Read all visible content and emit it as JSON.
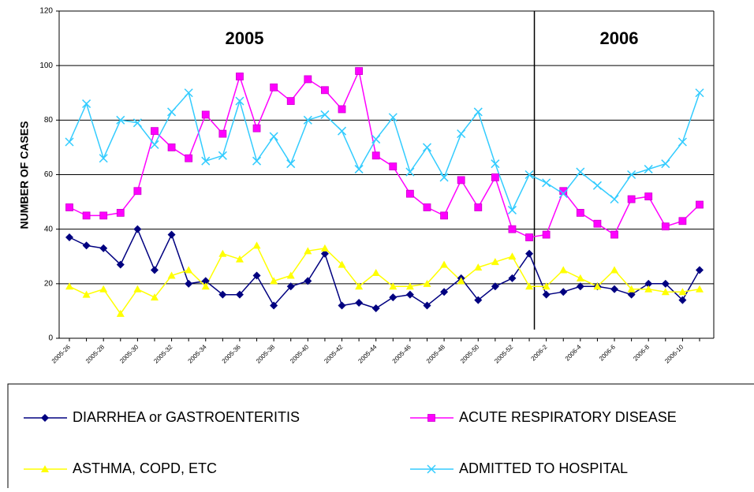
{
  "chart_data": {
    "type": "line",
    "y_label": "NUMBER OF CASES",
    "annotations": [
      "2005",
      "2006"
    ],
    "categories": [
      "2005-26",
      null,
      "2005-28",
      null,
      "2005-30",
      null,
      "2005-32",
      null,
      "2005-34",
      null,
      "2005-36",
      null,
      "2005-38",
      null,
      "2005-40",
      null,
      "2005-42",
      null,
      "2005-44",
      null,
      "2005-46",
      null,
      "2005-48",
      null,
      "2005-50",
      null,
      "2005-52",
      null,
      "2006-2",
      null,
      "2006-4",
      null,
      "2006-6",
      null,
      "2006-8",
      null,
      "2006-10",
      null
    ],
    "series": [
      {
        "name": "DIARRHEA or GASTROENTERITIS",
        "color": "#000080",
        "marker": "diamond",
        "values": [
          37,
          34,
          33,
          27,
          40,
          25,
          38,
          20,
          21,
          16,
          16,
          23,
          12,
          19,
          21,
          31,
          12,
          13,
          11,
          15,
          16,
          12,
          17,
          22,
          14,
          19,
          22,
          31,
          16,
          17,
          19,
          19,
          18,
          16,
          20,
          20,
          14,
          25
        ]
      },
      {
        "name": "ACUTE RESPIRATORY DISEASE",
        "color": "#ff00ff",
        "marker": "square",
        "values": [
          48,
          45,
          45,
          46,
          54,
          76,
          70,
          66,
          82,
          75,
          96,
          77,
          92,
          87,
          95,
          91,
          84,
          98,
          67,
          63,
          53,
          48,
          45,
          58,
          48,
          59,
          40,
          37,
          38,
          54,
          46,
          42,
          38,
          51,
          52,
          41,
          43,
          49
        ]
      },
      {
        "name": "ASTHMA, COPD, ETC",
        "color": "#ffff00",
        "marker": "triangle",
        "values": [
          19,
          16,
          18,
          9,
          18,
          15,
          23,
          25,
          19,
          31,
          29,
          34,
          21,
          23,
          32,
          33,
          27,
          19,
          24,
          19,
          19,
          20,
          27,
          21,
          26,
          28,
          30,
          19,
          19,
          25,
          22,
          19,
          25,
          18,
          18,
          17,
          17,
          18
        ]
      },
      {
        "name": "ADMITTED TO HOSPITAL",
        "color": "#33ccff",
        "marker": "x",
        "values": [
          72,
          86,
          66,
          80,
          79,
          71,
          83,
          90,
          65,
          67,
          87,
          65,
          74,
          64,
          80,
          82,
          76,
          62,
          73,
          81,
          61,
          70,
          59,
          75,
          83,
          64,
          47,
          60,
          57,
          53,
          61,
          56,
          51,
          60,
          62,
          64,
          72,
          90
        ]
      }
    ],
    "ylim": [
      0,
      120
    ],
    "yticks": [
      0,
      20,
      40,
      60,
      80,
      100,
      120
    ],
    "grid": true
  }
}
